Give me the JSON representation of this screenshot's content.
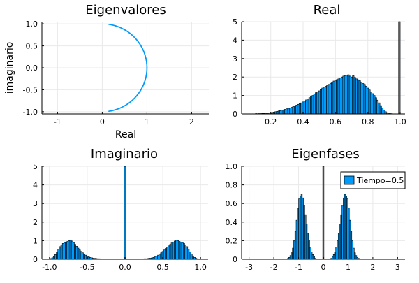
{
  "colors": {
    "series": "#009AFA",
    "edge": "#000000",
    "grid": "#E9E9E9"
  },
  "chart_data": [
    {
      "id": "eig",
      "type": "scatter",
      "title": "Eigenvalores",
      "xlabel": "Real",
      "ylabel": "imaginario",
      "xlim": [
        -1.35,
        2.4
      ],
      "ylim": [
        -1.05,
        1.05
      ],
      "xticks": [
        -1,
        0,
        1,
        2
      ],
      "xtick_labels": [
        "-1",
        "0",
        "1",
        "2"
      ],
      "yticks": [
        -1.0,
        -0.5,
        0.0,
        0.5,
        1.0
      ],
      "ytick_labels": [
        "-1.0",
        "-0.5",
        "0.0",
        "0.5",
        "1.0"
      ],
      "grid": true,
      "points_description": "Eigenvalues lie on the unit circle, phases between about -1.4 and 1.4 rad",
      "phase_range": [
        -1.42,
        1.42
      ]
    },
    {
      "id": "real",
      "type": "bar",
      "title": "Real",
      "xlim": [
        0.02,
        1.03
      ],
      "ylim": [
        0,
        5
      ],
      "xticks": [
        0.2,
        0.4,
        0.6,
        0.8,
        1.0
      ],
      "xtick_labels": [
        "0.2",
        "0.4",
        "0.6",
        "0.8",
        "1.0"
      ],
      "yticks": [
        0,
        1,
        2,
        3,
        4,
        5
      ],
      "ytick_labels": [
        "0",
        "1",
        "2",
        "3",
        "4",
        "5"
      ],
      "grid": true,
      "bin_width": 0.01,
      "x": [
        0.11,
        0.12,
        0.13,
        0.14,
        0.15,
        0.16,
        0.17,
        0.18,
        0.19,
        0.2,
        0.21,
        0.22,
        0.23,
        0.24,
        0.25,
        0.26,
        0.27,
        0.28,
        0.29,
        0.3,
        0.31,
        0.32,
        0.33,
        0.34,
        0.35,
        0.36,
        0.37,
        0.38,
        0.39,
        0.4,
        0.41,
        0.42,
        0.43,
        0.44,
        0.45,
        0.46,
        0.47,
        0.48,
        0.49,
        0.5,
        0.51,
        0.52,
        0.53,
        0.54,
        0.55,
        0.56,
        0.57,
        0.58,
        0.59,
        0.6,
        0.61,
        0.62,
        0.63,
        0.64,
        0.65,
        0.66,
        0.67,
        0.68,
        0.69,
        0.7,
        0.71,
        0.72,
        0.73,
        0.74,
        0.75,
        0.76,
        0.77,
        0.78,
        0.79,
        0.8,
        0.81,
        0.82,
        0.83,
        0.84,
        0.85,
        0.86,
        0.87,
        0.88,
        0.89,
        0.9,
        0.91,
        0.92,
        0.93,
        0.94,
        0.95,
        0.995
      ],
      "values": [
        0.02,
        0.01,
        0.02,
        0.02,
        0.03,
        0.03,
        0.04,
        0.04,
        0.06,
        0.07,
        0.08,
        0.1,
        0.12,
        0.14,
        0.16,
        0.18,
        0.2,
        0.22,
        0.25,
        0.28,
        0.3,
        0.33,
        0.36,
        0.4,
        0.44,
        0.48,
        0.52,
        0.56,
        0.6,
        0.65,
        0.7,
        0.76,
        0.82,
        0.88,
        0.95,
        1.0,
        1.08,
        1.15,
        1.2,
        1.25,
        1.32,
        1.4,
        1.45,
        1.5,
        1.55,
        1.6,
        1.66,
        1.72,
        1.78,
        1.82,
        1.86,
        1.9,
        1.95,
        2.0,
        2.05,
        2.08,
        2.1,
        2.12,
        2.05,
        2.0,
        2.07,
        1.98,
        1.9,
        1.85,
        1.8,
        1.72,
        1.65,
        1.6,
        1.5,
        1.4,
        1.3,
        1.2,
        1.1,
        1.0,
        0.88,
        0.75,
        0.6,
        0.45,
        0.32,
        0.2,
        0.12,
        0.07,
        0.04,
        0.02,
        0.01,
        5.0
      ]
    },
    {
      "id": "imag",
      "type": "bar",
      "title": "Imaginario",
      "xlim": [
        -1.1,
        1.1
      ],
      "ylim": [
        0,
        5
      ],
      "xticks": [
        -1.0,
        -0.5,
        0.0,
        0.5,
        1.0
      ],
      "xtick_labels": [
        "-1.0",
        "-0.5",
        "0.0",
        "0.5",
        "1.0"
      ],
      "yticks": [
        0,
        1,
        2,
        3,
        4,
        5
      ],
      "ytick_labels": [
        "0",
        "1",
        "2",
        "3",
        "4",
        "5"
      ],
      "grid": true,
      "bin_width": 0.02,
      "x": [
        -1.0,
        -0.98,
        -0.96,
        -0.94,
        -0.92,
        -0.9,
        -0.88,
        -0.86,
        -0.84,
        -0.82,
        -0.8,
        -0.78,
        -0.76,
        -0.74,
        -0.72,
        -0.7,
        -0.68,
        -0.66,
        -0.64,
        -0.62,
        -0.6,
        -0.58,
        -0.56,
        -0.54,
        -0.52,
        -0.5,
        -0.48,
        -0.46,
        -0.44,
        -0.42,
        -0.4,
        -0.38,
        -0.36,
        -0.34,
        -0.32,
        -0.3,
        -0.28,
        -0.26,
        -0.24,
        -0.22,
        -0.2,
        -0.18,
        -0.16,
        -0.14,
        -0.12,
        -0.1,
        0.0,
        0.1,
        0.12,
        0.14,
        0.16,
        0.18,
        0.2,
        0.22,
        0.24,
        0.26,
        0.28,
        0.3,
        0.32,
        0.34,
        0.36,
        0.38,
        0.4,
        0.42,
        0.44,
        0.46,
        0.48,
        0.5,
        0.52,
        0.54,
        0.56,
        0.58,
        0.6,
        0.62,
        0.64,
        0.66,
        0.68,
        0.7,
        0.72,
        0.74,
        0.76,
        0.78,
        0.8,
        0.82,
        0.84,
        0.86,
        0.88,
        0.9,
        0.92,
        0.94,
        0.96,
        0.98,
        1.0
      ],
      "values": [
        0.02,
        0.04,
        0.08,
        0.15,
        0.25,
        0.4,
        0.55,
        0.68,
        0.78,
        0.85,
        0.9,
        0.93,
        0.96,
        1.0,
        1.02,
        0.98,
        0.9,
        0.8,
        0.7,
        0.6,
        0.5,
        0.42,
        0.35,
        0.28,
        0.22,
        0.17,
        0.13,
        0.1,
        0.08,
        0.06,
        0.05,
        0.04,
        0.03,
        0.03,
        0.02,
        0.02,
        0.02,
        0.01,
        0.01,
        0.01,
        0.01,
        0.01,
        0.01,
        0.01,
        0.01,
        0.01,
        5.0,
        0.01,
        0.01,
        0.01,
        0.01,
        0.01,
        0.02,
        0.02,
        0.02,
        0.03,
        0.03,
        0.04,
        0.05,
        0.06,
        0.08,
        0.1,
        0.13,
        0.17,
        0.22,
        0.28,
        0.35,
        0.42,
        0.5,
        0.58,
        0.65,
        0.72,
        0.8,
        0.88,
        0.93,
        0.98,
        1.02,
        1.0,
        0.96,
        0.93,
        0.9,
        0.85,
        0.78,
        0.68,
        0.55,
        0.4,
        0.28,
        0.18,
        0.1,
        0.05,
        0.03,
        0.02,
        0.01
      ]
    },
    {
      "id": "fases",
      "type": "bar",
      "title": "Eigenfases",
      "xlim": [
        -3.3,
        3.3
      ],
      "ylim": [
        0,
        1.0
      ],
      "xticks": [
        -3,
        -2,
        -1,
        0,
        1,
        2,
        3
      ],
      "xtick_labels": [
        "-3",
        "-2",
        "-1",
        "0",
        "1",
        "2",
        "3"
      ],
      "yticks": [
        0,
        0.2,
        0.4,
        0.6,
        0.8,
        1.0
      ],
      "ytick_labels": [
        "0",
        "0.2",
        "0.4",
        "0.6",
        "0.8",
        "1.0"
      ],
      "grid": true,
      "legend": {
        "label": "Tiempo=0.5",
        "placement": "top-right"
      },
      "bin_width": 0.05,
      "x": [
        -1.425,
        -1.375,
        -1.325,
        -1.275,
        -1.225,
        -1.175,
        -1.125,
        -1.075,
        -1.025,
        -0.975,
        -0.925,
        -0.875,
        -0.825,
        -0.775,
        -0.725,
        -0.675,
        -0.625,
        -0.575,
        -0.525,
        -0.475,
        -0.425,
        -0.375,
        -0.325,
        0.0,
        0.325,
        0.375,
        0.425,
        0.475,
        0.525,
        0.575,
        0.625,
        0.675,
        0.725,
        0.775,
        0.825,
        0.875,
        0.925,
        0.975,
        1.025,
        1.075,
        1.125,
        1.175,
        1.225,
        1.275,
        1.325,
        1.375,
        1.425
      ],
      "values": [
        0.01,
        0.02,
        0.04,
        0.07,
        0.12,
        0.2,
        0.3,
        0.42,
        0.55,
        0.65,
        0.68,
        0.7,
        0.66,
        0.58,
        0.48,
        0.38,
        0.28,
        0.2,
        0.13,
        0.08,
        0.05,
        0.03,
        0.01,
        1.0,
        0.01,
        0.03,
        0.05,
        0.08,
        0.13,
        0.2,
        0.28,
        0.38,
        0.48,
        0.58,
        0.66,
        0.7,
        0.68,
        0.65,
        0.55,
        0.42,
        0.3,
        0.2,
        0.12,
        0.07,
        0.04,
        0.02,
        0.01
      ]
    }
  ]
}
